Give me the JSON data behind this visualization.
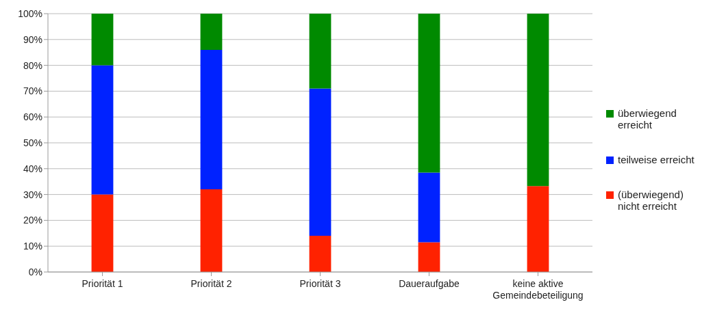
{
  "chart_data": {
    "type": "bar",
    "stacked": true,
    "categories": [
      "Priorität 1",
      "Priorität 2",
      "Priorität 3",
      "Daueraufgabe",
      "keine aktive Gemeindebeteiligung"
    ],
    "series": [
      {
        "name": "(überwiegend) nicht erreicht",
        "color": "#ff2200",
        "values": [
          30,
          32,
          14,
          11.5,
          33.3
        ]
      },
      {
        "name": "teilweise erreicht",
        "color": "#0022ff",
        "values": [
          50,
          54,
          57,
          27,
          0
        ]
      },
      {
        "name": "überwiegend erreicht",
        "color": "#008a00",
        "values": [
          20,
          14,
          29,
          61.5,
          66.7
        ]
      }
    ],
    "ylim": [
      0,
      100
    ],
    "yticks": [
      {
        "value": 0,
        "label": "0%"
      },
      {
        "value": 10,
        "label": "10%"
      },
      {
        "value": 20,
        "label": "20%"
      },
      {
        "value": 30,
        "label": "30%"
      },
      {
        "value": 40,
        "label": "40%"
      },
      {
        "value": 50,
        "label": "50%"
      },
      {
        "value": 60,
        "label": "60%"
      },
      {
        "value": 70,
        "label": "70%"
      },
      {
        "value": 80,
        "label": "80%"
      },
      {
        "value": 90,
        "label": "90%"
      },
      {
        "value": 100,
        "label": "100%"
      }
    ],
    "grid": "y",
    "legend": "right"
  }
}
